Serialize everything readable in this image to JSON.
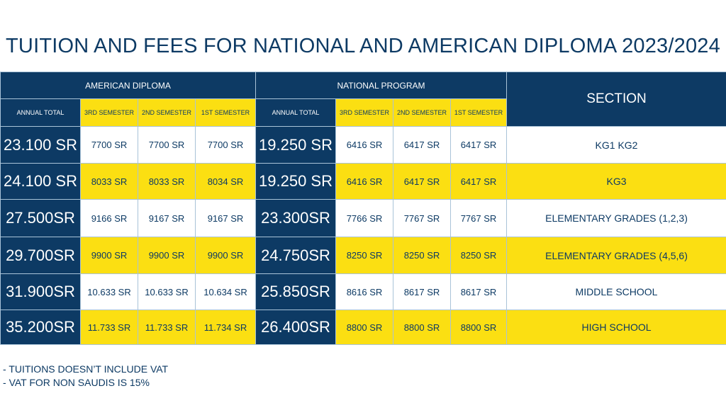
{
  "title": "TUITION AND FEES FOR NATIONAL AND AMERICAN DIPLOMA 2023/2024",
  "headers": {
    "american": "AMERICAN DIPLOMA",
    "national": "NATIONAL PROGRAM",
    "section": "SECTION",
    "annual_total": "ANNUAL TOTAL",
    "sem3": "3RD SEMESTER",
    "sem2": "2ND SEMESTER",
    "sem1": "1ST SEMESTER"
  },
  "rows": [
    {
      "am_total": "23.100 SR",
      "am_s3": "7700 SR",
      "am_s2": "7700 SR",
      "am_s1": "7700 SR",
      "na_total": "19.250 SR",
      "na_s3": "6416 SR",
      "na_s2": "6417 SR",
      "na_s1": "6417 SR",
      "section": "KG1 KG2"
    },
    {
      "am_total": "24.100 SR",
      "am_s3": "8033 SR",
      "am_s2": "8033 SR",
      "am_s1": "8034 SR",
      "na_total": "19.250 SR",
      "na_s3": "6416 SR",
      "na_s2": "6417 SR",
      "na_s1": "6417 SR",
      "section": "KG3"
    },
    {
      "am_total": "27.500SR",
      "am_s3": "9166 SR",
      "am_s2": "9167 SR",
      "am_s1": "9167 SR",
      "na_total": "23.300SR",
      "na_s3": "7766 SR",
      "na_s2": "7767 SR",
      "na_s1": "7767 SR",
      "section": "ELEMENTARY GRADES (1,2,3)"
    },
    {
      "am_total": "29.700SR",
      "am_s3": "9900 SR",
      "am_s2": "9900 SR",
      "am_s1": "9900 SR",
      "na_total": "24.750SR",
      "na_s3": "8250 SR",
      "na_s2": "8250 SR",
      "na_s1": "8250 SR",
      "section": "ELEMENTARY GRADES (4,5,6)"
    },
    {
      "am_total": "31.900SR",
      "am_s3": "10.633 SR",
      "am_s2": "10.633 SR",
      "am_s1": "10.634 SR",
      "na_total": "25.850SR",
      "na_s3": "8616 SR",
      "na_s2": "8617 SR",
      "na_s1": "8617 SR",
      "section": "MIDDLE SCHOOL"
    },
    {
      "am_total": "35.200SR",
      "am_s3": "11.733 SR",
      "am_s2": "11.733 SR",
      "am_s1": "11.734 SR",
      "na_total": "26.400SR",
      "na_s3": "8800 SR",
      "na_s2": "8800 SR",
      "na_s1": "8800 SR",
      "section": "HIGH SCHOOL"
    }
  ],
  "notes": [
    "TUITIONS DOESN’T INCLUDE VAT",
    "VAT FOR NON SAUDIS IS 15%"
  ],
  "colors": {
    "navy": "#0d3a64",
    "yellow": "#fbdf12",
    "white": "#ffffff",
    "border": "#a9c3d8"
  }
}
